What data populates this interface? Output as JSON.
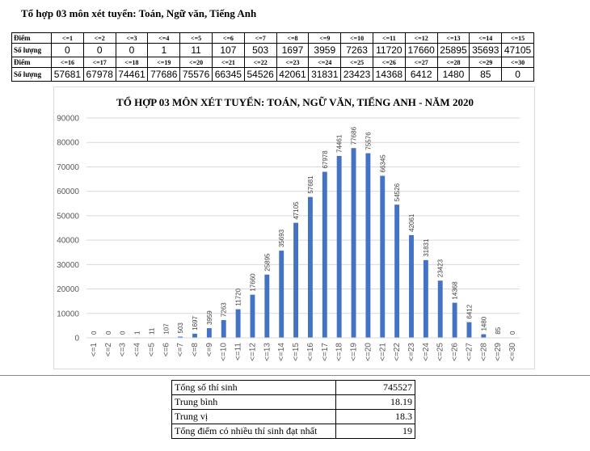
{
  "page_title": "Tổ hợp 03 môn xét tuyển: Toán, Ngữ văn, Tiếng Anh",
  "table": {
    "row_header_label": "Điểm",
    "row_value_label": "Số lượng",
    "rows": [
      {
        "headers": [
          "<=1",
          "<=2",
          "<=3",
          "<=4",
          "<=5",
          "<=6",
          "<=7",
          "<=8",
          "<=9",
          "<=10",
          "<=11",
          "<=12",
          "<=13",
          "<=14",
          "<=15"
        ],
        "values": [
          "0",
          "0",
          "0",
          "1",
          "11",
          "107",
          "503",
          "1697",
          "3959",
          "7263",
          "11720",
          "17660",
          "25895",
          "35693",
          "47105"
        ]
      },
      {
        "headers": [
          "<=16",
          "<=17",
          "<=18",
          "<=19",
          "<=20",
          "<=21",
          "<=22",
          "<=23",
          "<=24",
          "<=25",
          "<=26",
          "<=27",
          "<=28",
          "<=29",
          "<=30"
        ],
        "values": [
          "57681",
          "67978",
          "74461",
          "77686",
          "75576",
          "66345",
          "54526",
          "42061",
          "31831",
          "23423",
          "14368",
          "6412",
          "1480",
          "85",
          "0"
        ]
      }
    ]
  },
  "chart_data": {
    "type": "bar",
    "title": "TỔ HỢP 03 MÔN XÉT TUYỂN: TOÁN, NGỮ VĂN, TIẾNG ANH - NĂM 2020",
    "categories": [
      "<=1",
      "<=2",
      "<=3",
      "<=4",
      "<=5",
      "<=6",
      "<=7",
      "<=8",
      "<=9",
      "<=10",
      "<=11",
      "<=12",
      "<=13",
      "<=14",
      "<=15",
      "<=16",
      "<=17",
      "<=18",
      "<=19",
      "<=20",
      "<=21",
      "<=22",
      "<=23",
      "<=24",
      "<=25",
      "<=26",
      "<=27",
      "<=28",
      "<=29",
      "<=30"
    ],
    "values": [
      0,
      0,
      0,
      1,
      11,
      107,
      503,
      1697,
      3959,
      7263,
      11720,
      17660,
      25895,
      35693,
      47105,
      57681,
      67978,
      74461,
      77686,
      75576,
      66345,
      54526,
      42061,
      31831,
      23423,
      14368,
      6412,
      1480,
      85,
      0
    ],
    "xlabel": "",
    "ylabel": "",
    "ylim": [
      0,
      90000
    ],
    "yticks": [
      0,
      10000,
      20000,
      30000,
      40000,
      50000,
      60000,
      70000,
      80000,
      90000
    ],
    "grid": true,
    "data_labels": true,
    "bar_color": "#4472c4"
  },
  "stats": [
    {
      "label": "Tổng số thí sinh",
      "value": "745527"
    },
    {
      "label": "Trung bình",
      "value": "18.19"
    },
    {
      "label": "Trung vị",
      "value": "18.3"
    },
    {
      "label": "Tổng điểm có nhiều thí sinh đạt nhất",
      "value": "19"
    }
  ]
}
